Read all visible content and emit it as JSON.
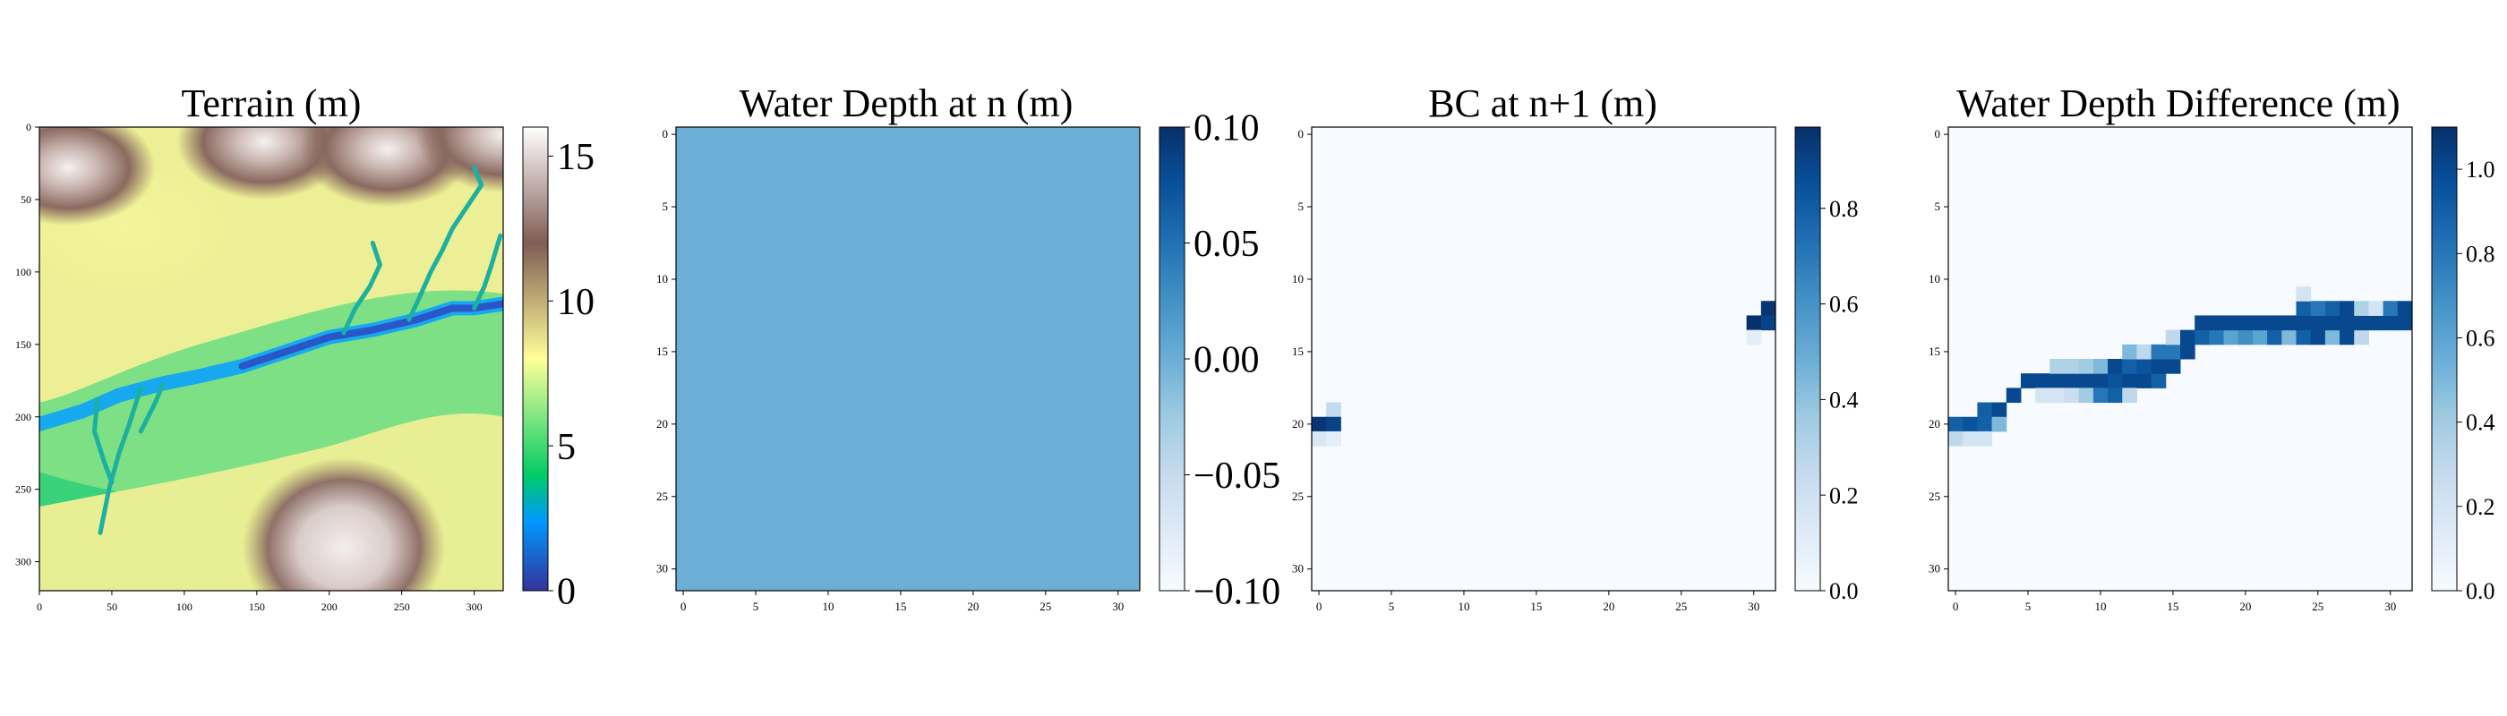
{
  "chart_data": [
    {
      "type": "heatmap",
      "title": "Terrain (m)",
      "grid_size": 320,
      "extent": [
        0,
        320,
        320,
        0
      ],
      "xticks": [
        0,
        50,
        100,
        150,
        200,
        250,
        300
      ],
      "yticks": [
        0,
        50,
        100,
        150,
        200,
        250,
        300
      ],
      "colormap": "terrain",
      "colorbar": {
        "ticks": [
          0,
          5,
          10,
          15
        ],
        "labels": [
          "0",
          "5",
          "10",
          "15"
        ],
        "range": [
          0,
          16
        ]
      },
      "river_path": [
        [
          0,
          205
        ],
        [
          30,
          196
        ],
        [
          55,
          185
        ],
        [
          85,
          177
        ],
        [
          110,
          172
        ],
        [
          140,
          165
        ],
        [
          170,
          155
        ],
        [
          200,
          145
        ],
        [
          230,
          140
        ],
        [
          260,
          133
        ],
        [
          285,
          125
        ],
        [
          300,
          125
        ],
        [
          320,
          122
        ]
      ],
      "tributaries": [
        [
          [
            210,
            142
          ],
          [
            218,
            125
          ],
          [
            228,
            110
          ],
          [
            235,
            95
          ],
          [
            230,
            80
          ]
        ],
        [
          [
            255,
            133
          ],
          [
            262,
            118
          ],
          [
            270,
            100
          ],
          [
            278,
            85
          ],
          [
            285,
            70
          ],
          [
            295,
            55
          ],
          [
            305,
            40
          ],
          [
            300,
            28
          ]
        ],
        [
          [
            300,
            125
          ],
          [
            307,
            110
          ],
          [
            312,
            95
          ],
          [
            318,
            75
          ]
        ],
        [
          [
            40,
            188
          ],
          [
            38,
            210
          ],
          [
            45,
            232
          ],
          [
            50,
            245
          ]
        ],
        [
          [
            70,
            180
          ],
          [
            62,
            205
          ],
          [
            55,
            225
          ],
          [
            48,
            250
          ],
          [
            42,
            280
          ]
        ],
        [
          [
            85,
            178
          ],
          [
            80,
            190
          ],
          [
            70,
            210
          ]
        ]
      ],
      "peaks": [
        [
          155,
          10,
          16,
          28
        ],
        [
          240,
          15,
          15,
          24
        ],
        [
          20,
          28,
          14,
          20
        ],
        [
          320,
          5,
          13,
          18
        ]
      ],
      "hill": [
        [
          210,
          290,
          16,
          30
        ]
      ]
    },
    {
      "type": "heatmap",
      "title": "Water Depth at n (m)",
      "grid_size": 32,
      "extent": [
        0,
        32,
        32,
        0
      ],
      "xticks": [
        0,
        5,
        10,
        15,
        20,
        25,
        30
      ],
      "yticks": [
        0,
        5,
        10,
        15,
        20,
        25,
        30
      ],
      "colormap": "Blues",
      "uniform_value": 0.0,
      "colorbar": {
        "ticks": [
          -0.1,
          -0.05,
          0.0,
          0.05,
          0.1
        ],
        "labels": [
          "−0.10",
          "−0.05",
          "0.00",
          "0.05",
          "0.10"
        ],
        "range": [
          -0.1,
          0.1
        ]
      },
      "cells": []
    },
    {
      "type": "heatmap",
      "title": "BC at n+1 (m)",
      "grid_size": 32,
      "extent": [
        0,
        32,
        32,
        0
      ],
      "xticks": [
        0,
        5,
        10,
        15,
        20,
        25,
        30
      ],
      "yticks": [
        0,
        5,
        10,
        15,
        20,
        25,
        30
      ],
      "colormap": "Blues",
      "colorbar": {
        "ticks": [
          0.0,
          0.2,
          0.4,
          0.6,
          0.8
        ],
        "labels": [
          "0.0",
          "0.2",
          "0.4",
          "0.6",
          "0.8"
        ],
        "range": [
          0,
          0.97
        ]
      },
      "cells": [
        {
          "row": 19,
          "col": 1,
          "value": 0.25
        },
        {
          "row": 20,
          "col": 0,
          "value": 0.95
        },
        {
          "row": 20,
          "col": 1,
          "value": 0.9
        },
        {
          "row": 21,
          "col": 0,
          "value": 0.15
        },
        {
          "row": 21,
          "col": 1,
          "value": 0.1
        },
        {
          "row": 12,
          "col": 31,
          "value": 0.95
        },
        {
          "row": 13,
          "col": 30,
          "value": 0.97
        },
        {
          "row": 13,
          "col": 31,
          "value": 0.9
        },
        {
          "row": 14,
          "col": 30,
          "value": 0.1
        }
      ]
    },
    {
      "type": "heatmap",
      "title": "Water Depth Difference (m)",
      "grid_size": 32,
      "extent": [
        0,
        32,
        32,
        0
      ],
      "xticks": [
        0,
        5,
        10,
        15,
        20,
        25,
        30
      ],
      "yticks": [
        0,
        5,
        10,
        15,
        20,
        25,
        30
      ],
      "colormap": "Blues",
      "colorbar": {
        "ticks": [
          0.0,
          0.2,
          0.4,
          0.6,
          0.8,
          1.0
        ],
        "labels": [
          "0.0",
          "0.2",
          "0.4",
          "0.6",
          "0.8",
          "1.0"
        ],
        "range": [
          0,
          1.1
        ]
      },
      "cells": [
        {
          "row": 20,
          "col": 0,
          "value": 0.9
        },
        {
          "row": 20,
          "col": 1,
          "value": 0.95
        },
        {
          "row": 20,
          "col": 2,
          "value": 0.9
        },
        {
          "row": 21,
          "col": 0,
          "value": 0.3
        },
        {
          "row": 21,
          "col": 1,
          "value": 0.2
        },
        {
          "row": 21,
          "col": 2,
          "value": 0.2
        },
        {
          "row": 19,
          "col": 2,
          "value": 0.9
        },
        {
          "row": 19,
          "col": 3,
          "value": 1.0
        },
        {
          "row": 20,
          "col": 3,
          "value": 0.5
        },
        {
          "row": 18,
          "col": 4,
          "value": 1.0
        },
        {
          "row": 17,
          "col": 5,
          "value": 1.0
        },
        {
          "row": 17,
          "col": 6,
          "value": 1.0
        },
        {
          "row": 17,
          "col": 7,
          "value": 1.0
        },
        {
          "row": 17,
          "col": 8,
          "value": 1.0
        },
        {
          "row": 17,
          "col": 9,
          "value": 1.0
        },
        {
          "row": 17,
          "col": 10,
          "value": 1.0
        },
        {
          "row": 17,
          "col": 11,
          "value": 0.95
        },
        {
          "row": 17,
          "col": 12,
          "value": 1.0
        },
        {
          "row": 17,
          "col": 13,
          "value": 1.0
        },
        {
          "row": 17,
          "col": 14,
          "value": 0.9
        },
        {
          "row": 16,
          "col": 7,
          "value": 0.35
        },
        {
          "row": 16,
          "col": 8,
          "value": 0.35
        },
        {
          "row": 16,
          "col": 9,
          "value": 0.4
        },
        {
          "row": 16,
          "col": 10,
          "value": 0.5
        },
        {
          "row": 16,
          "col": 11,
          "value": 1.0
        },
        {
          "row": 16,
          "col": 12,
          "value": 0.9
        },
        {
          "row": 16,
          "col": 13,
          "value": 0.95
        },
        {
          "row": 16,
          "col": 14,
          "value": 1.0
        },
        {
          "row": 16,
          "col": 15,
          "value": 1.0
        },
        {
          "row": 18,
          "col": 6,
          "value": 0.2
        },
        {
          "row": 18,
          "col": 7,
          "value": 0.2
        },
        {
          "row": 18,
          "col": 8,
          "value": 0.25
        },
        {
          "row": 18,
          "col": 9,
          "value": 0.4
        },
        {
          "row": 18,
          "col": 10,
          "value": 0.8
        },
        {
          "row": 18,
          "col": 11,
          "value": 0.9
        },
        {
          "row": 18,
          "col": 12,
          "value": 0.3
        },
        {
          "row": 15,
          "col": 12,
          "value": 0.5
        },
        {
          "row": 15,
          "col": 13,
          "value": 0.3
        },
        {
          "row": 15,
          "col": 14,
          "value": 0.8
        },
        {
          "row": 15,
          "col": 15,
          "value": 0.8
        },
        {
          "row": 15,
          "col": 16,
          "value": 1.0
        },
        {
          "row": 14,
          "col": 15,
          "value": 0.3
        },
        {
          "row": 14,
          "col": 16,
          "value": 1.0
        },
        {
          "row": 14,
          "col": 17,
          "value": 0.9
        },
        {
          "row": 14,
          "col": 18,
          "value": 0.8
        },
        {
          "row": 14,
          "col": 19,
          "value": 0.6
        },
        {
          "row": 14,
          "col": 20,
          "value": 0.7
        },
        {
          "row": 14,
          "col": 21,
          "value": 0.6
        },
        {
          "row": 14,
          "col": 22,
          "value": 0.9
        },
        {
          "row": 14,
          "col": 23,
          "value": 0.5
        },
        {
          "row": 14,
          "col": 24,
          "value": 0.9
        },
        {
          "row": 14,
          "col": 25,
          "value": 1.0
        },
        {
          "row": 14,
          "col": 26,
          "value": 0.5
        },
        {
          "row": 14,
          "col": 27,
          "value": 1.0
        },
        {
          "row": 14,
          "col": 28,
          "value": 0.3
        },
        {
          "row": 13,
          "col": 17,
          "value": 1.0
        },
        {
          "row": 13,
          "col": 18,
          "value": 1.0
        },
        {
          "row": 13,
          "col": 19,
          "value": 1.0
        },
        {
          "row": 13,
          "col": 20,
          "value": 1.0
        },
        {
          "row": 13,
          "col": 21,
          "value": 1.0
        },
        {
          "row": 13,
          "col": 22,
          "value": 1.0
        },
        {
          "row": 13,
          "col": 23,
          "value": 1.0
        },
        {
          "row": 13,
          "col": 24,
          "value": 1.0
        },
        {
          "row": 13,
          "col": 25,
          "value": 1.0
        },
        {
          "row": 13,
          "col": 26,
          "value": 1.0
        },
        {
          "row": 13,
          "col": 27,
          "value": 1.0
        },
        {
          "row": 13,
          "col": 28,
          "value": 1.0
        },
        {
          "row": 13,
          "col": 29,
          "value": 1.0
        },
        {
          "row": 13,
          "col": 30,
          "value": 1.0
        },
        {
          "row": 13,
          "col": 31,
          "value": 1.0
        },
        {
          "row": 12,
          "col": 24,
          "value": 0.9
        },
        {
          "row": 12,
          "col": 25,
          "value": 0.8
        },
        {
          "row": 12,
          "col": 26,
          "value": 0.9
        },
        {
          "row": 12,
          "col": 27,
          "value": 1.0
        },
        {
          "row": 12,
          "col": 28,
          "value": 0.35
        },
        {
          "row": 12,
          "col": 29,
          "value": 0.2
        },
        {
          "row": 12,
          "col": 30,
          "value": 0.8
        },
        {
          "row": 12,
          "col": 31,
          "value": 1.0
        },
        {
          "row": 11,
          "col": 24,
          "value": 0.2
        }
      ]
    }
  ]
}
